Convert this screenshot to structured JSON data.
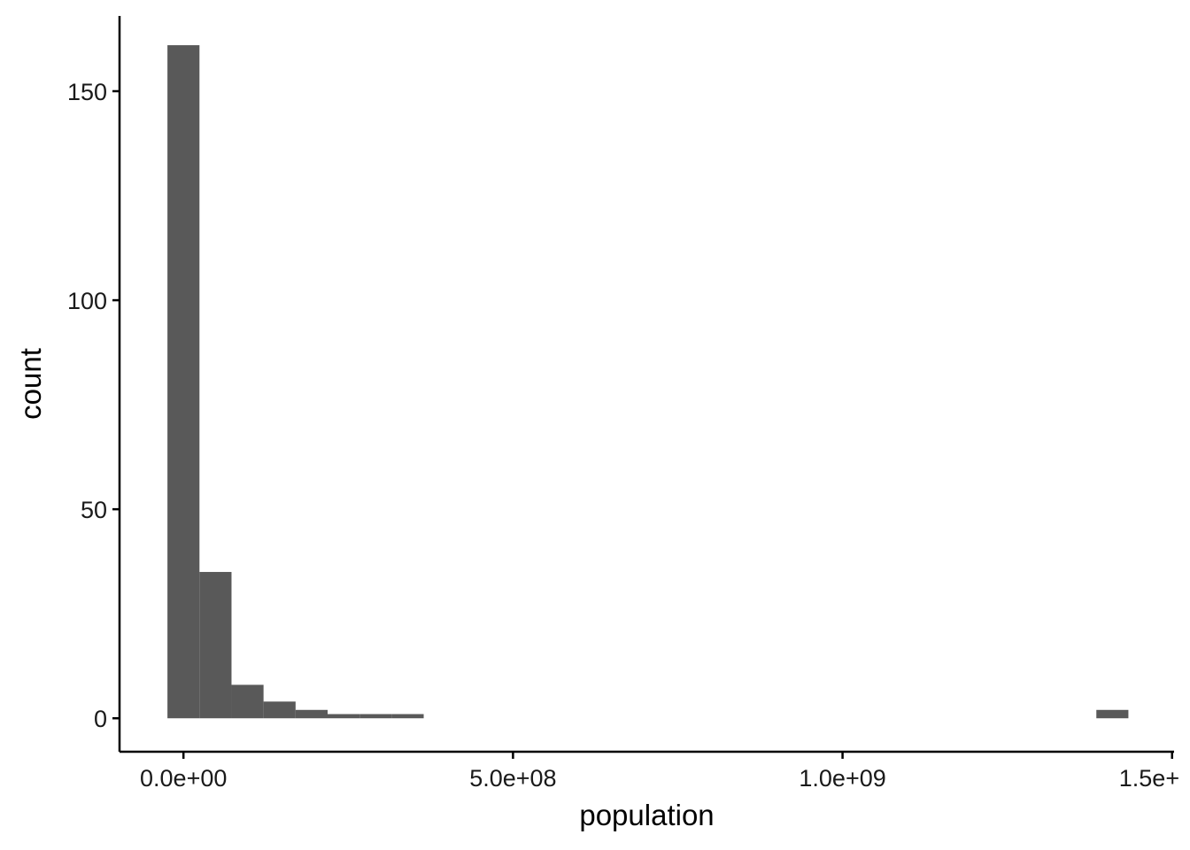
{
  "chart_data": {
    "type": "bar",
    "subtype": "histogram",
    "title": "",
    "xlabel": "population",
    "ylabel": "count",
    "bar_color": "#595959",
    "axis_color": "#000000",
    "background": "#ffffff",
    "grid": false,
    "legend": "none",
    "bin_width": 48600000,
    "bins": [
      {
        "x_start": -24300000,
        "x_end": 24300000,
        "count": 161
      },
      {
        "x_start": 24300000,
        "x_end": 72900000,
        "count": 35
      },
      {
        "x_start": 72900000,
        "x_end": 121500000,
        "count": 8
      },
      {
        "x_start": 121500000,
        "x_end": 170100000,
        "count": 4
      },
      {
        "x_start": 170100000,
        "x_end": 218700000,
        "count": 2
      },
      {
        "x_start": 218700000,
        "x_end": 267300000,
        "count": 1
      },
      {
        "x_start": 267300000,
        "x_end": 315900000,
        "count": 1
      },
      {
        "x_start": 315900000,
        "x_end": 364500000,
        "count": 1
      },
      {
        "x_start": 1385100000,
        "x_end": 1433700000,
        "count": 2
      }
    ],
    "xlim": [
      -97000000,
      1503000000
    ],
    "ylim": [
      -8,
      168
    ],
    "x_ticks": [
      {
        "value": 0,
        "label": "0.0e+00"
      },
      {
        "value": 500000000,
        "label": "5.0e+08"
      },
      {
        "value": 1000000000,
        "label": "1.0e+09"
      },
      {
        "value": 1500000000,
        "label": "1.5e+"
      }
    ],
    "y_ticks": [
      {
        "value": 0,
        "label": "0"
      },
      {
        "value": 50,
        "label": "50"
      },
      {
        "value": 100,
        "label": "100"
      },
      {
        "value": 150,
        "label": "150"
      }
    ]
  }
}
